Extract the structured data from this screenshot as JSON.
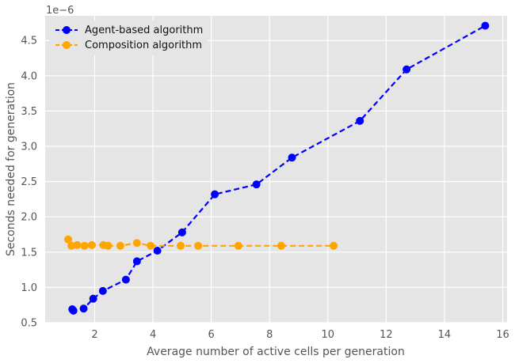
{
  "chart_data": {
    "type": "line",
    "title": "",
    "xlabel": "Average number of active cells per generation",
    "ylabel": "Seconds needed for generation",
    "y_offset_label": "1e−6",
    "xlim": [
      0.3,
      16.15
    ],
    "ylim": [
      0.5,
      4.85
    ],
    "x_ticks": [
      2,
      4,
      6,
      8,
      10,
      12,
      14,
      16
    ],
    "y_ticks": [
      0.5,
      1.0,
      1.5,
      2.0,
      2.5,
      3.0,
      3.5,
      4.0,
      4.5
    ],
    "x_tick_labels": [
      "2",
      "4",
      "6",
      "8",
      "10",
      "12",
      "14",
      "16"
    ],
    "y_tick_labels": [
      "0.5",
      "1.0",
      "1.5",
      "2.0",
      "2.5",
      "3.0",
      "3.5",
      "4.0",
      "4.5"
    ],
    "grid": true,
    "legend_position": "top-left",
    "series": [
      {
        "name": "Agent-based algorithm",
        "color": "#0000ff",
        "style": "dashed",
        "marker": "circle",
        "x": [
          1.23,
          1.27,
          1.62,
          1.95,
          2.28,
          3.07,
          3.45,
          4.15,
          5.0,
          6.12,
          7.55,
          8.77,
          11.1,
          12.7,
          15.4
        ],
        "y": [
          0.69,
          0.67,
          0.7,
          0.84,
          0.95,
          1.11,
          1.37,
          1.52,
          1.78,
          2.32,
          2.46,
          2.84,
          3.36,
          4.09,
          4.71
        ]
      },
      {
        "name": "Composition algorithm",
        "color": "#ffa500",
        "style": "dashed",
        "marker": "circle",
        "x": [
          1.09,
          1.2,
          1.4,
          1.65,
          1.9,
          2.3,
          2.46,
          2.88,
          3.45,
          3.92,
          4.95,
          5.55,
          6.93,
          8.4,
          10.2
        ],
        "y": [
          1.68,
          1.59,
          1.6,
          1.59,
          1.6,
          1.6,
          1.59,
          1.59,
          1.63,
          1.59,
          1.59,
          1.59,
          1.59,
          1.59,
          1.59
        ]
      }
    ]
  }
}
